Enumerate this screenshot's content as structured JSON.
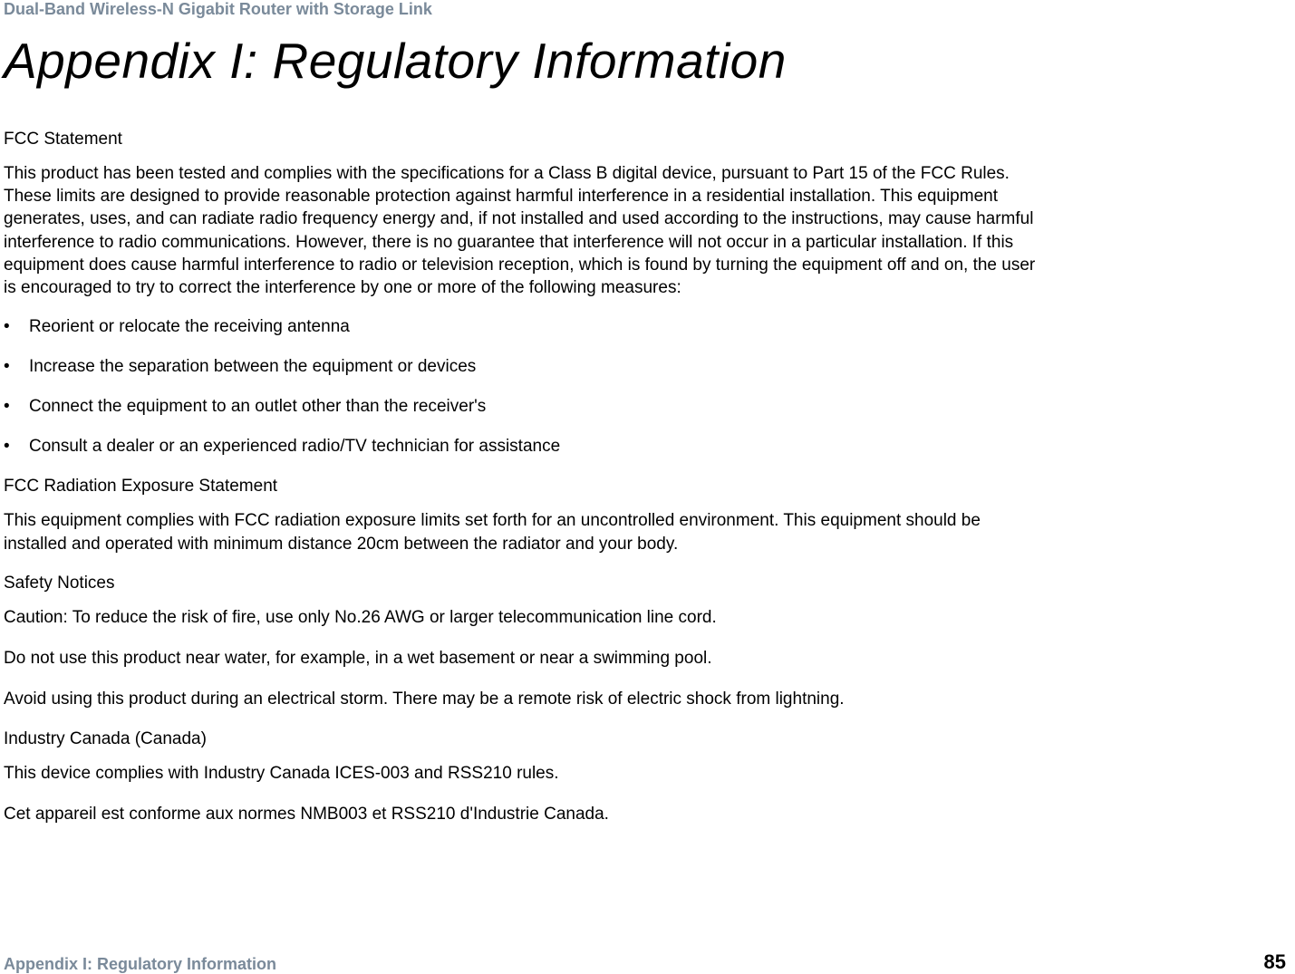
{
  "colors": {
    "header_gray": "#7a8a9a",
    "body_text": "#000000",
    "background": "#ffffff"
  },
  "typography": {
    "header_fontsize": 18,
    "title_fontsize": 55,
    "body_fontsize": 19,
    "footer_left_fontsize": 18,
    "footer_right_fontsize": 22,
    "title_style": "italic",
    "title_weight": 300
  },
  "header": {
    "product_line": "Dual-Band Wireless-N Gigabit Router with Storage Link"
  },
  "title": "Appendix I: Regulatory Information",
  "fcc": {
    "heading": "FCC Statement",
    "paragraph": "This product has been tested and complies with the specifications for a Class B digital device, pursuant to Part 15 of the FCC Rules. These limits are designed to provide reasonable protection against harmful interference in a residential installation. This equipment generates, uses, and can radiate radio frequency energy and, if not installed and used according to the instructions, may cause harmful interference to radio communications. However, there is no guarantee that interference will not occur in a particular installation. If this equipment does cause harmful interference to radio or television reception, which is found by turning the equipment off and on, the user is encouraged to try to correct the interference by one or more of the following measures:",
    "bullets": [
      "Reorient or relocate the receiving antenna",
      "Increase the separation between the equipment or devices",
      "Connect the equipment to an outlet other than the receiver's",
      "Consult a dealer or an experienced radio/TV technician for assistance"
    ]
  },
  "radiation": {
    "heading": "FCC Radiation Exposure Statement",
    "paragraph": "This equipment complies with FCC radiation exposure limits set forth for an uncontrolled environment. This equipment should be installed and operated with minimum distance 20cm between the radiator and your body."
  },
  "safety": {
    "heading": "Safety Notices",
    "p1": "Caution: To reduce the risk of fire, use only No.26 AWG or larger telecommunication line cord.",
    "p2": "Do not use this product near water, for example, in a wet basement or near a swimming pool.",
    "p3": "Avoid using this product during an electrical storm. There may be a remote risk of electric shock from lightning."
  },
  "canada": {
    "heading": "Industry Canada (Canada)",
    "p1": "This device complies with Industry Canada ICES-003 and RSS210 rules.",
    "p2": "Cet appareil est conforme aux normes NMB003 et RSS210 d'Industrie Canada."
  },
  "footer": {
    "left": "Appendix I: Regulatory Information",
    "page_number": "85"
  },
  "bullet_glyph": "•"
}
